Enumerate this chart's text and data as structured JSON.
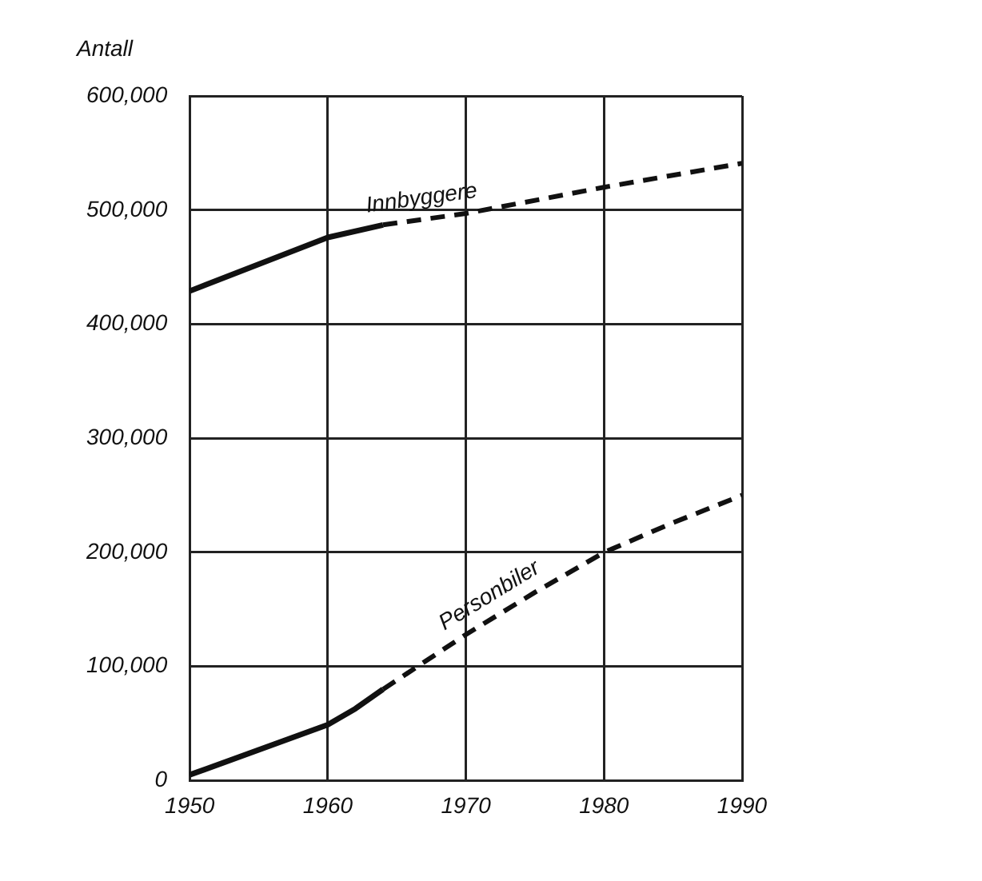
{
  "chart_data": {
    "type": "line",
    "ylabel": "Antall",
    "xlim": [
      1950,
      1990
    ],
    "xticks": [
      1950,
      1960,
      1970,
      1980,
      1990
    ],
    "ylim": [
      0,
      600000
    ],
    "yticks": [
      0,
      {
        "value": 100000,
        "label": "100,000"
      },
      {
        "value": 200000,
        "label": "200,000"
      },
      {
        "value": 300000,
        "label": "300,000"
      },
      {
        "value": 400000,
        "label": "400,000"
      },
      {
        "value": 500000,
        "label": "500,000"
      },
      {
        "value": 600000,
        "label": "600,000"
      }
    ],
    "grid": true,
    "legend": false,
    "marker": "none",
    "series": [
      {
        "color": "#111111",
        "line_style": "solid",
        "x": [
          1950,
          1960,
          1964
        ],
        "values": [
          429000,
          476000,
          487000
        ]
      },
      {
        "name": "Innbyggere",
        "color": "#111111",
        "line_style": "dashed",
        "x": [
          1964,
          1970,
          1980,
          1990
        ],
        "values": [
          487000,
          497000,
          520000,
          541000
        ]
      },
      {
        "color": "#111111",
        "line_style": "solid",
        "x": [
          1950,
          1960,
          1962,
          1964
        ],
        "values": [
          5000,
          49000,
          63000,
          80000
        ]
      },
      {
        "name": "Personbiler",
        "color": "#111111",
        "line_style": "dashed",
        "x": [
          1964,
          1970,
          1975,
          1980,
          1985,
          1990
        ],
        "values": [
          80000,
          128000,
          165000,
          200000,
          226000,
          250000
        ]
      }
    ]
  }
}
